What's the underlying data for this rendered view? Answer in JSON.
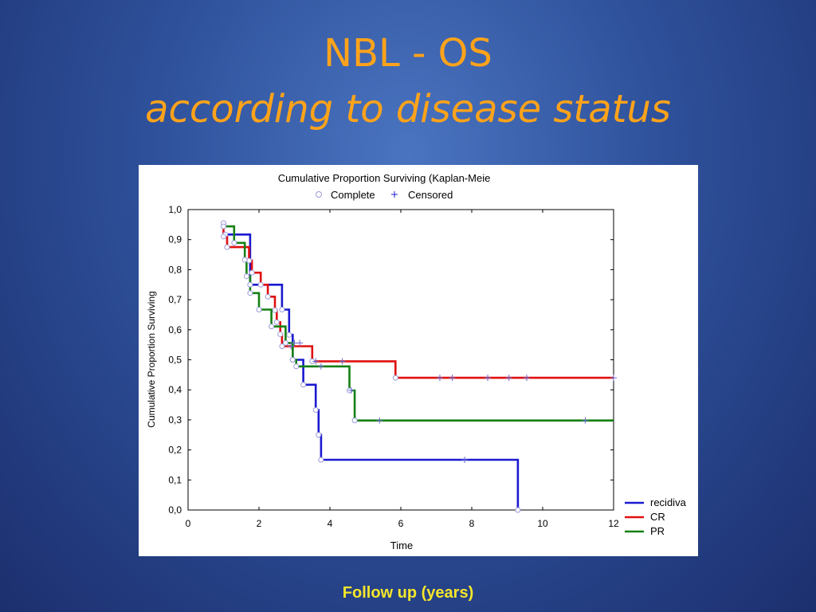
{
  "slide": {
    "title_line1": "NBL - OS",
    "title_line2": "according to disease status",
    "footer": "Follow up  (years)"
  },
  "colors": {
    "title": "#ffa31a",
    "footer": "#f5e62a",
    "recidiva": "#1a1ad0",
    "CR": "#e01010",
    "PR": "#148014"
  },
  "chart_data": {
    "type": "line",
    "step": true,
    "title": "Cumulative Proportion Surviving (Kaplan-Meie",
    "marker_legend": [
      {
        "symbol": "circle",
        "label": "Complete"
      },
      {
        "symbol": "plus",
        "label": "Censored"
      }
    ],
    "xlabel": "Time",
    "ylabel": "Cumulative Proportion Surviving",
    "xlim": [
      0,
      12
    ],
    "ylim": [
      0,
      1
    ],
    "xticks": [
      0,
      2,
      4,
      6,
      8,
      10,
      12
    ],
    "xtick_labels": [
      "0",
      "2",
      "4",
      "6",
      "8",
      "10",
      "12"
    ],
    "yticks": [
      0,
      0.1,
      0.2,
      0.3,
      0.4,
      0.5,
      0.6,
      0.7,
      0.8,
      0.9,
      1.0
    ],
    "ytick_labels": [
      "0,0",
      "0,1",
      "0,2",
      "0,3",
      "0,4",
      "0,5",
      "0,6",
      "0,7",
      "0,8",
      "0,9",
      "1,0"
    ],
    "legend_position": "bottom-right",
    "series": [
      {
        "name": "recidiva",
        "points": [
          [
            1.05,
            0.917
          ],
          [
            1.75,
            0.917
          ],
          [
            1.75,
            0.75
          ],
          [
            2.65,
            0.75
          ],
          [
            2.65,
            0.667
          ],
          [
            2.85,
            0.667
          ],
          [
            2.85,
            0.583
          ],
          [
            2.95,
            0.583
          ],
          [
            2.95,
            0.5
          ],
          [
            3.25,
            0.5
          ],
          [
            3.25,
            0.417
          ],
          [
            3.6,
            0.417
          ],
          [
            3.6,
            0.333
          ],
          [
            3.68,
            0.333
          ],
          [
            3.68,
            0.25
          ],
          [
            3.75,
            0.25
          ],
          [
            3.75,
            0.167
          ],
          [
            9.3,
            0.167
          ],
          [
            9.3,
            0.0
          ]
        ],
        "complete_events": [
          [
            1.05,
            0.917
          ],
          [
            1.75,
            0.75
          ],
          [
            2.65,
            0.667
          ],
          [
            2.85,
            0.583
          ],
          [
            2.95,
            0.5
          ],
          [
            3.25,
            0.417
          ],
          [
            3.6,
            0.333
          ],
          [
            3.68,
            0.25
          ],
          [
            3.75,
            0.167
          ],
          [
            9.3,
            0.0
          ]
        ],
        "censored": [
          [
            7.8,
            0.167
          ]
        ]
      },
      {
        "name": "CR",
        "points": [
          [
            1.0,
            0.955
          ],
          [
            1.0,
            0.91
          ],
          [
            1.1,
            0.91
          ],
          [
            1.1,
            0.875
          ],
          [
            1.72,
            0.875
          ],
          [
            1.72,
            0.83
          ],
          [
            1.8,
            0.83
          ],
          [
            1.8,
            0.79
          ],
          [
            2.05,
            0.79
          ],
          [
            2.05,
            0.75
          ],
          [
            2.25,
            0.75
          ],
          [
            2.25,
            0.71
          ],
          [
            2.45,
            0.71
          ],
          [
            2.45,
            0.665
          ],
          [
            2.5,
            0.665
          ],
          [
            2.5,
            0.625
          ],
          [
            2.6,
            0.625
          ],
          [
            2.6,
            0.585
          ],
          [
            2.65,
            0.585
          ],
          [
            2.65,
            0.545
          ],
          [
            3.5,
            0.545
          ],
          [
            3.5,
            0.495
          ],
          [
            5.85,
            0.495
          ],
          [
            5.85,
            0.44
          ],
          [
            12.0,
            0.44
          ]
        ],
        "complete_events": [
          [
            1.0,
            0.955
          ],
          [
            1.0,
            0.91
          ],
          [
            1.1,
            0.875
          ],
          [
            1.72,
            0.83
          ],
          [
            1.8,
            0.79
          ],
          [
            2.05,
            0.75
          ],
          [
            2.25,
            0.71
          ],
          [
            2.45,
            0.665
          ],
          [
            2.5,
            0.625
          ],
          [
            2.6,
            0.585
          ],
          [
            2.65,
            0.545
          ],
          [
            3.5,
            0.495
          ],
          [
            5.85,
            0.44
          ]
        ],
        "censored": [
          [
            2.9,
            0.545
          ],
          [
            3.6,
            0.495
          ],
          [
            4.35,
            0.495
          ],
          [
            7.1,
            0.44
          ],
          [
            7.45,
            0.44
          ],
          [
            8.45,
            0.44
          ],
          [
            9.05,
            0.44
          ],
          [
            9.55,
            0.44
          ],
          [
            12.0,
            0.44
          ]
        ]
      },
      {
        "name": "PR",
        "points": [
          [
            1.0,
            0.944
          ],
          [
            1.3,
            0.944
          ],
          [
            1.3,
            0.889
          ],
          [
            1.6,
            0.889
          ],
          [
            1.6,
            0.833
          ],
          [
            1.65,
            0.833
          ],
          [
            1.65,
            0.778
          ],
          [
            1.75,
            0.778
          ],
          [
            1.75,
            0.722
          ],
          [
            2.0,
            0.722
          ],
          [
            2.0,
            0.667
          ],
          [
            2.35,
            0.667
          ],
          [
            2.35,
            0.611
          ],
          [
            2.75,
            0.611
          ],
          [
            2.75,
            0.556
          ],
          [
            2.95,
            0.556
          ],
          [
            2.95,
            0.5
          ],
          [
            3.05,
            0.5
          ],
          [
            3.05,
            0.478
          ],
          [
            4.55,
            0.478
          ],
          [
            4.55,
            0.398
          ],
          [
            4.7,
            0.398
          ],
          [
            4.7,
            0.298
          ],
          [
            12.0,
            0.298
          ]
        ],
        "complete_events": [
          [
            1.0,
            0.944
          ],
          [
            1.3,
            0.889
          ],
          [
            1.6,
            0.833
          ],
          [
            1.65,
            0.778
          ],
          [
            1.75,
            0.722
          ],
          [
            2.0,
            0.667
          ],
          [
            2.35,
            0.611
          ],
          [
            2.75,
            0.556
          ],
          [
            2.95,
            0.5
          ],
          [
            3.05,
            0.478
          ],
          [
            4.55,
            0.398
          ],
          [
            4.7,
            0.298
          ]
        ],
        "censored": [
          [
            3.0,
            0.556
          ],
          [
            3.15,
            0.556
          ],
          [
            3.75,
            0.478
          ],
          [
            4.6,
            0.398
          ],
          [
            5.4,
            0.298
          ],
          [
            11.2,
            0.298
          ]
        ]
      }
    ]
  }
}
